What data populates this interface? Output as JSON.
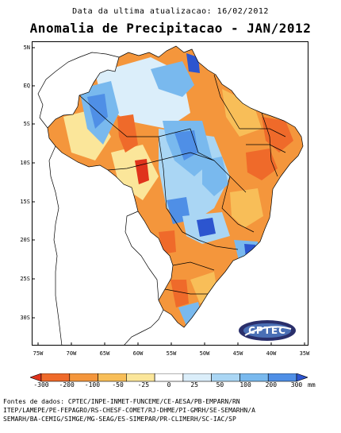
{
  "header": {
    "update_text": "Data da ultima atualizacao: 16/02/2012",
    "title": "Anomalia de Precipitacao - JAN/2012"
  },
  "axes": {
    "lat_labels": [
      "5N",
      "EQ",
      "5S",
      "10S",
      "15S",
      "20S",
      "25S",
      "30S"
    ],
    "lon_labels": [
      "75W",
      "70W",
      "65W",
      "60W",
      "55W",
      "50W",
      "45W",
      "40W",
      "35W"
    ]
  },
  "legend": {
    "unit": "mm",
    "ticks": [
      "-300",
      "-200",
      "-100",
      "-50",
      "-25",
      "0",
      "25",
      "50",
      "100",
      "200",
      "300"
    ],
    "colors": [
      "#e0331c",
      "#ef6a2a",
      "#f4963c",
      "#f8be58",
      "#fbe69a",
      "#ffffff",
      "#dbeefa",
      "#aad6f4",
      "#79b9ee",
      "#4f8fe6",
      "#2c55cf"
    ]
  },
  "logo": {
    "text": "CPTEC"
  },
  "sources": [
    "Fontes de dados: CPTEC/INPE-INMET-FUNCEME/CE-AESA/PB-EMPARN/RN",
    "ITEP/LAMEPE/PE-FEPAGRO/RS-CHESF-COMET/RJ-DHME/PI-GMRH/SE-SEMARHN/A",
    "SEMARH/BA-CEMIG/SIMGE/MG-SEAG/ES-SIMEPAR/PR-CLIMERH/SC-IAC/SP"
  ]
}
